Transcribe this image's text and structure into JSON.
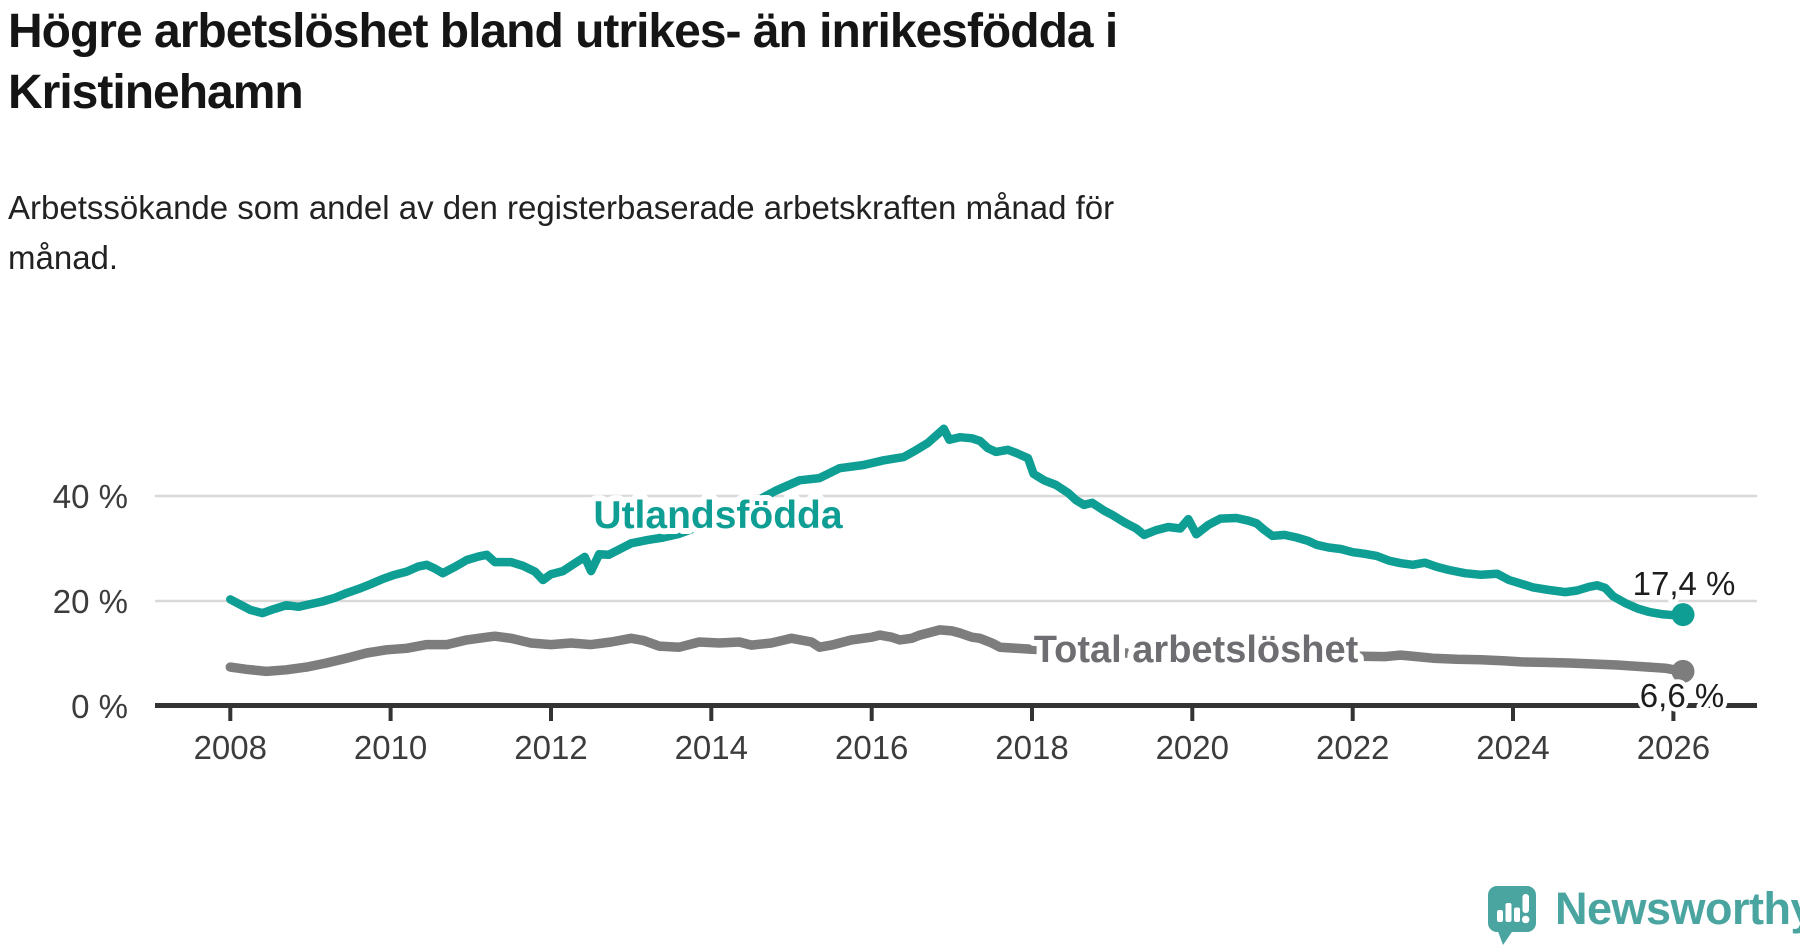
{
  "header": {
    "title": "Högre arbetslöshet bland utrikes- än inrikesfödda i\nKristinehamn",
    "subtitle": "Arbetssökande som andel av den registerbaserade arbetskraften månad för\nmånad."
  },
  "chart_data": {
    "type": "line",
    "title": "Högre arbetslöshet bland utrikes- än inrikesfödda i Kristinehamn",
    "subtitle": "Arbetssökande som andel av den registerbaserade arbetskraften månad för månad.",
    "unit": "percent",
    "x_axis": {
      "ticks": [
        2008,
        2010,
        2012,
        2014,
        2016,
        2018,
        2020,
        2022,
        2024,
        2026
      ],
      "range": [
        2008,
        2026.3
      ]
    },
    "y_axis": {
      "ticks": [
        {
          "value": 0,
          "label": "0 %"
        },
        {
          "value": 20,
          "label": "20 %"
        },
        {
          "value": 40,
          "label": "40 %"
        }
      ],
      "ylim": [
        0,
        56
      ],
      "grid": true
    },
    "colors": {
      "utlandsfodda": "#0f9e94",
      "total": "#7d7d7d",
      "axis": "#333333",
      "gridline": "#d9d9d9",
      "brand": "#4aa5a1"
    },
    "series": [
      {
        "name": "Utlandsfödda",
        "color": "#0f9e94",
        "end_label": "17,4 %",
        "end_value": 17.4,
        "points": [
          [
            2008.0,
            20.3
          ],
          [
            2008.1,
            19.5
          ],
          [
            2008.25,
            18.3
          ],
          [
            2008.4,
            17.7
          ],
          [
            2008.55,
            18.5
          ],
          [
            2008.7,
            19.2
          ],
          [
            2008.85,
            18.9
          ],
          [
            2009.0,
            19.4
          ],
          [
            2009.15,
            19.9
          ],
          [
            2009.3,
            20.6
          ],
          [
            2009.45,
            21.5
          ],
          [
            2009.6,
            22.3
          ],
          [
            2009.75,
            23.2
          ],
          [
            2009.9,
            24.2
          ],
          [
            2010.05,
            25.0
          ],
          [
            2010.2,
            25.6
          ],
          [
            2010.35,
            26.6
          ],
          [
            2010.45,
            26.9
          ],
          [
            2010.55,
            26.2
          ],
          [
            2010.65,
            25.3
          ],
          [
            2010.8,
            26.5
          ],
          [
            2010.95,
            27.8
          ],
          [
            2011.1,
            28.5
          ],
          [
            2011.2,
            28.8
          ],
          [
            2011.3,
            27.4
          ],
          [
            2011.5,
            27.4
          ],
          [
            2011.65,
            26.7
          ],
          [
            2011.8,
            25.6
          ],
          [
            2011.9,
            24.0
          ],
          [
            2012.0,
            25.1
          ],
          [
            2012.15,
            25.7
          ],
          [
            2012.3,
            27.2
          ],
          [
            2012.42,
            28.4
          ],
          [
            2012.5,
            25.7
          ],
          [
            2012.6,
            28.9
          ],
          [
            2012.72,
            28.8
          ],
          [
            2012.85,
            29.8
          ],
          [
            2013.0,
            31.0
          ],
          [
            2013.2,
            31.6
          ],
          [
            2013.4,
            32.1
          ],
          [
            2013.6,
            32.8
          ],
          [
            2013.9,
            34.5
          ],
          [
            2014.2,
            36.5
          ],
          [
            2014.5,
            38.5
          ],
          [
            2014.8,
            41.0
          ],
          [
            2015.1,
            43.0
          ],
          [
            2015.35,
            43.4
          ],
          [
            2015.6,
            45.3
          ],
          [
            2015.9,
            45.9
          ],
          [
            2016.15,
            46.8
          ],
          [
            2016.4,
            47.4
          ],
          [
            2016.55,
            48.7
          ],
          [
            2016.7,
            50.1
          ],
          [
            2016.9,
            52.8
          ],
          [
            2016.97,
            50.7
          ],
          [
            2017.1,
            51.2
          ],
          [
            2017.25,
            51.0
          ],
          [
            2017.35,
            50.5
          ],
          [
            2017.45,
            49.1
          ],
          [
            2017.55,
            48.4
          ],
          [
            2017.7,
            48.8
          ],
          [
            2017.8,
            48.2
          ],
          [
            2017.95,
            47.2
          ],
          [
            2018.02,
            44.2
          ],
          [
            2018.15,
            43.0
          ],
          [
            2018.3,
            42.1
          ],
          [
            2018.45,
            40.6
          ],
          [
            2018.55,
            39.2
          ],
          [
            2018.65,
            38.3
          ],
          [
            2018.75,
            38.7
          ],
          [
            2018.9,
            37.2
          ],
          [
            2019.0,
            36.4
          ],
          [
            2019.15,
            35.0
          ],
          [
            2019.3,
            33.8
          ],
          [
            2019.4,
            32.6
          ],
          [
            2019.55,
            33.5
          ],
          [
            2019.7,
            34.1
          ],
          [
            2019.85,
            33.8
          ],
          [
            2019.95,
            35.6
          ],
          [
            2020.05,
            32.7
          ],
          [
            2020.2,
            34.5
          ],
          [
            2020.35,
            35.7
          ],
          [
            2020.55,
            35.8
          ],
          [
            2020.7,
            35.3
          ],
          [
            2020.8,
            34.8
          ],
          [
            2020.9,
            33.5
          ],
          [
            2021.0,
            32.4
          ],
          [
            2021.15,
            32.6
          ],
          [
            2021.3,
            32.1
          ],
          [
            2021.45,
            31.4
          ],
          [
            2021.55,
            30.7
          ],
          [
            2021.7,
            30.2
          ],
          [
            2021.85,
            29.9
          ],
          [
            2022.0,
            29.3
          ],
          [
            2022.15,
            29.0
          ],
          [
            2022.3,
            28.6
          ],
          [
            2022.45,
            27.7
          ],
          [
            2022.6,
            27.2
          ],
          [
            2022.75,
            26.9
          ],
          [
            2022.9,
            27.3
          ],
          [
            2023.05,
            26.5
          ],
          [
            2023.2,
            25.9
          ],
          [
            2023.4,
            25.3
          ],
          [
            2023.6,
            25.0
          ],
          [
            2023.8,
            25.2
          ],
          [
            2023.95,
            24.0
          ],
          [
            2024.1,
            23.3
          ],
          [
            2024.25,
            22.6
          ],
          [
            2024.45,
            22.1
          ],
          [
            2024.65,
            21.7
          ],
          [
            2024.8,
            22.0
          ],
          [
            2024.95,
            22.7
          ],
          [
            2025.05,
            23.0
          ],
          [
            2025.15,
            22.5
          ],
          [
            2025.25,
            20.9
          ],
          [
            2025.4,
            19.6
          ],
          [
            2025.55,
            18.6
          ],
          [
            2025.7,
            17.9
          ],
          [
            2025.85,
            17.5
          ],
          [
            2026.0,
            17.3
          ],
          [
            2026.12,
            17.4
          ]
        ]
      },
      {
        "name": "Total arbetslöshet",
        "color": "#7d7d7d",
        "end_label": "6,6 %",
        "end_value": 6.6,
        "points": [
          [
            2008.0,
            7.4
          ],
          [
            2008.2,
            7.0
          ],
          [
            2008.45,
            6.6
          ],
          [
            2008.7,
            6.9
          ],
          [
            2008.95,
            7.4
          ],
          [
            2009.2,
            8.2
          ],
          [
            2009.45,
            9.1
          ],
          [
            2009.7,
            10.1
          ],
          [
            2009.95,
            10.7
          ],
          [
            2010.2,
            11.0
          ],
          [
            2010.45,
            11.7
          ],
          [
            2010.7,
            11.7
          ],
          [
            2010.95,
            12.6
          ],
          [
            2011.2,
            13.1
          ],
          [
            2011.3,
            13.3
          ],
          [
            2011.5,
            12.9
          ],
          [
            2011.75,
            12.0
          ],
          [
            2012.0,
            11.7
          ],
          [
            2012.25,
            12.0
          ],
          [
            2012.5,
            11.7
          ],
          [
            2012.75,
            12.2
          ],
          [
            2013.0,
            12.9
          ],
          [
            2013.15,
            12.5
          ],
          [
            2013.35,
            11.4
          ],
          [
            2013.6,
            11.2
          ],
          [
            2013.85,
            12.2
          ],
          [
            2014.1,
            12.0
          ],
          [
            2014.35,
            12.2
          ],
          [
            2014.5,
            11.6
          ],
          [
            2014.75,
            12.0
          ],
          [
            2015.0,
            12.9
          ],
          [
            2015.25,
            12.2
          ],
          [
            2015.35,
            11.2
          ],
          [
            2015.5,
            11.6
          ],
          [
            2015.75,
            12.6
          ],
          [
            2016.0,
            13.1
          ],
          [
            2016.1,
            13.5
          ],
          [
            2016.25,
            13.1
          ],
          [
            2016.35,
            12.6
          ],
          [
            2016.5,
            12.9
          ],
          [
            2016.6,
            13.5
          ],
          [
            2016.75,
            14.1
          ],
          [
            2016.85,
            14.5
          ],
          [
            2017.0,
            14.3
          ],
          [
            2017.1,
            13.9
          ],
          [
            2017.25,
            13.1
          ],
          [
            2017.35,
            12.9
          ],
          [
            2017.5,
            12.0
          ],
          [
            2017.6,
            11.2
          ],
          [
            2018.0,
            10.8
          ],
          [
            2018.5,
            10.4
          ],
          [
            2019.0,
            10.2
          ],
          [
            2019.5,
            9.9
          ],
          [
            2020.0,
            10.1
          ],
          [
            2020.5,
            10.3
          ],
          [
            2021.0,
            10.0
          ],
          [
            2021.5,
            9.7
          ],
          [
            2022.0,
            9.5
          ],
          [
            2022.4,
            9.4
          ],
          [
            2022.6,
            9.7
          ],
          [
            2022.8,
            9.4
          ],
          [
            2023.0,
            9.1
          ],
          [
            2023.3,
            8.9
          ],
          [
            2023.6,
            8.8
          ],
          [
            2023.9,
            8.6
          ],
          [
            2024.1,
            8.4
          ],
          [
            2024.4,
            8.3
          ],
          [
            2024.7,
            8.2
          ],
          [
            2025.0,
            8.0
          ],
          [
            2025.3,
            7.8
          ],
          [
            2025.6,
            7.5
          ],
          [
            2025.9,
            7.2
          ],
          [
            2026.12,
            6.6
          ]
        ]
      }
    ]
  },
  "footer": {
    "brand": "Newsworthy",
    "logo_icon": "speech-bubble-bar-chart-icon"
  }
}
